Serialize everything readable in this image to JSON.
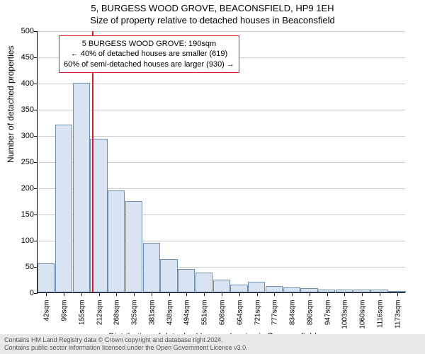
{
  "title": {
    "line1": "5, BURGESS WOOD GROVE, BEACONSFIELD, HP9 1EH",
    "line2": "Size of property relative to detached houses in Beaconsfield"
  },
  "chart": {
    "type": "histogram",
    "background_color": "#ffffff",
    "grid_color": "#cccccc",
    "bar_fill": "#d8e4f2",
    "bar_stroke": "#6f8fb0",
    "axis_color": "#000000",
    "ylim": [
      0,
      500
    ],
    "ytick_step": 50,
    "yticks": [
      0,
      50,
      100,
      150,
      200,
      250,
      300,
      350,
      400,
      450,
      500
    ],
    "y_axis_title": "Number of detached properties",
    "x_axis_title": "Distribution of detached houses by size in Beaconsfield",
    "xtick_labels": [
      "42sqm",
      "99sqm",
      "155sqm",
      "212sqm",
      "268sqm",
      "325sqm",
      "381sqm",
      "438sqm",
      "494sqm",
      "551sqm",
      "608sqm",
      "664sqm",
      "721sqm",
      "777sqm",
      "834sqm",
      "890sqm",
      "947sqm",
      "1003sqm",
      "1060sqm",
      "1116sqm",
      "1173sqm"
    ],
    "bar_values": [
      55,
      320,
      400,
      293,
      195,
      175,
      95,
      63,
      45,
      38,
      25,
      15,
      20,
      12,
      10,
      8,
      5,
      5,
      5,
      5,
      3
    ],
    "reference_line": {
      "position_index": 2.6,
      "color": "#e02020"
    }
  },
  "annotation": {
    "line1": "5 BURGESS WOOD GROVE: 190sqm",
    "line2": "← 40% of detached houses are smaller (619)",
    "line3": "60% of semi-detached houses are larger (930) →",
    "border_color": "#e02020",
    "fontsize": 11
  },
  "footer": {
    "line1": "Contains HM Land Registry data © Crown copyright and database right 2024.",
    "line2": "Contains public sector information licensed under the Open Government Licence v3.0."
  }
}
